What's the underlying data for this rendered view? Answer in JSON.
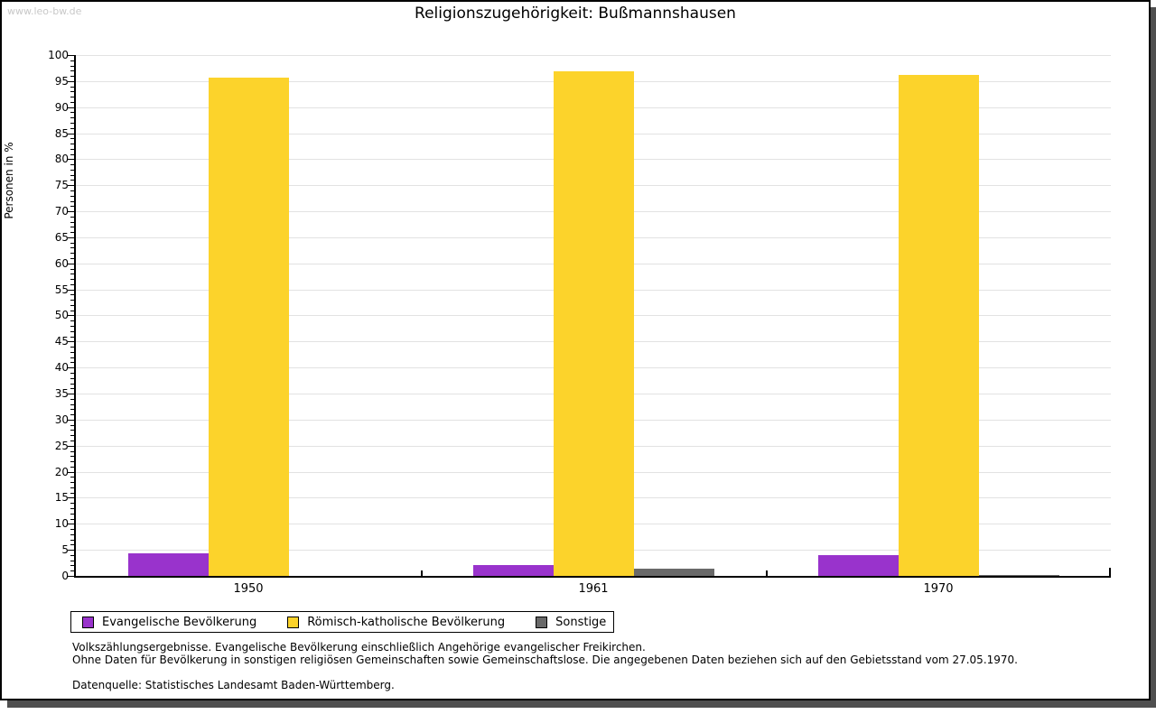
{
  "watermark": "www.leo-bw.de",
  "title": "Religionszugehörigkeit: Bußmannshausen",
  "chart_data": {
    "type": "bar",
    "title": "Religionszugehörigkeit: Bußmannshausen",
    "xlabel": "",
    "ylabel": "Personen in %",
    "ylim": [
      0,
      100
    ],
    "ytick_step": 5,
    "yminor_step": 1,
    "grid": true,
    "legend_position": "bottom",
    "categories": [
      "1950",
      "1961",
      "1970"
    ],
    "series": [
      {
        "name": "Evangelische Bevölkerung",
        "color": "#9933cc",
        "values": [
          4.4,
          2.1,
          4.0
        ]
      },
      {
        "name": "Römisch-katholische Bevölkerung",
        "color": "#fcd32b",
        "values": [
          95.7,
          96.8,
          96.2
        ]
      },
      {
        "name": "Sonstige",
        "color": "#696969",
        "values": [
          0,
          1.3,
          0.2
        ]
      }
    ]
  },
  "footnotes": [
    "Volkszählungsergebnisse. Evangelische Bevölkerung einschließlich Angehörige evangelischer Freikirchen.",
    "Ohne Daten für Bevölkerung in sonstigen religiösen Gemeinschaften sowie Gemeinschaftslose. Die angegebenen Daten beziehen sich auf den Gebietsstand vom 27.05.1970."
  ],
  "source": "Datenquelle: Statistisches Landesamt Baden-Württemberg."
}
